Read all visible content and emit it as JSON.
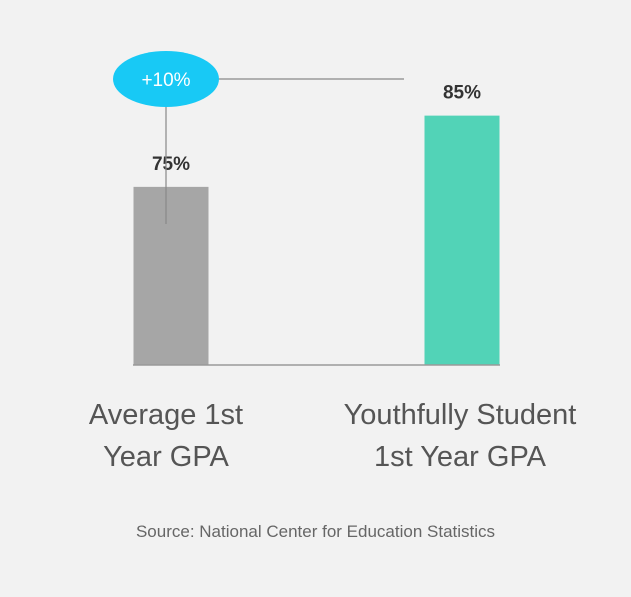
{
  "chart_data": {
    "type": "bar",
    "categories": [
      [
        "Average 1st",
        "Year GPA"
      ],
      [
        "Youthfully Student",
        "1st Year GPA"
      ]
    ],
    "values": [
      75,
      85
    ],
    "data_labels": [
      "75%",
      "85%"
    ],
    "colors": [
      "#a6a6a6",
      "#52d3b7"
    ],
    "annotation": {
      "label": "+10%",
      "color": "#18c9f5"
    },
    "ylim": [
      50,
      90
    ]
  },
  "source": "Source: National Center for Education Statistics"
}
